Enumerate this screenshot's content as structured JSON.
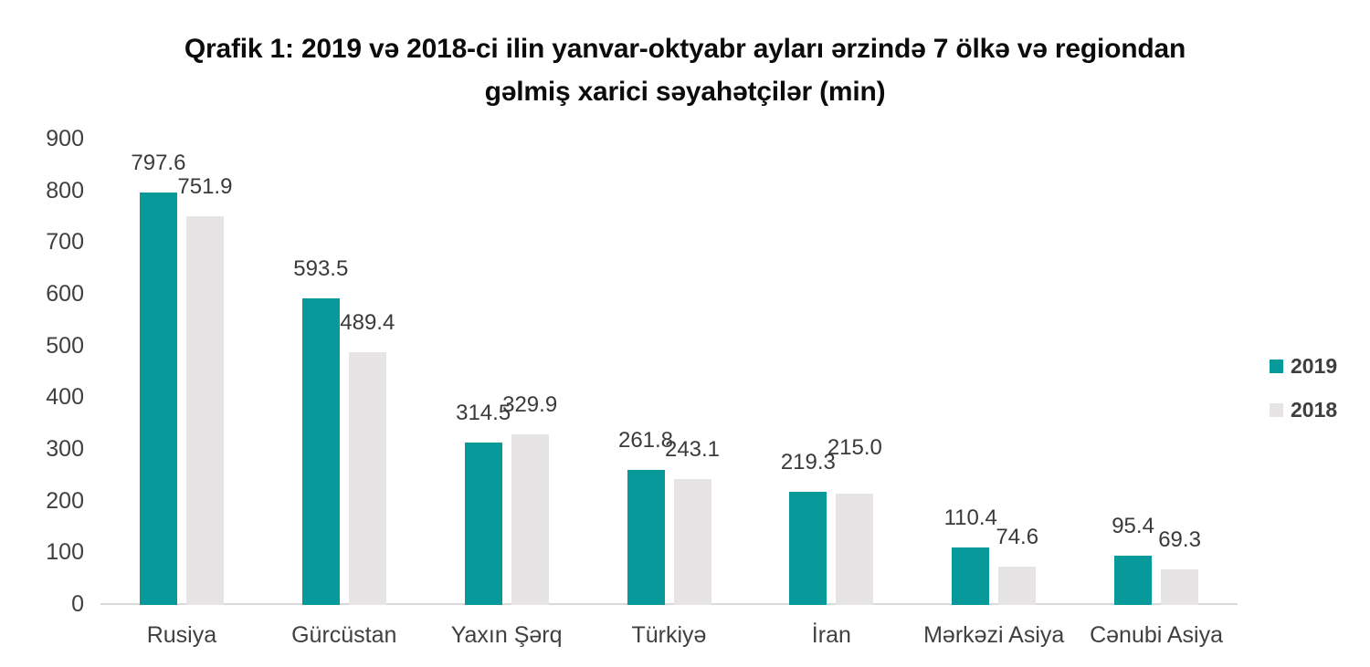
{
  "chart_data": {
    "type": "bar",
    "title": "Qrafik 1: 2019 və 2018-ci ilin yanvar-oktyabr ayları ərzində 7 ölkə və regiondan gəlmiş xarici səyahətçilər (min)",
    "title_lines": [
      "Qrafik 1: 2019 və 2018-ci ilin yanvar-oktyabr ayları ərzində 7 ölkə və regiondan",
      "gəlmiş xarici səyahətçilər (min)"
    ],
    "categories": [
      "Rusiya",
      "Gürcüstan",
      "Yaxın Şərq",
      "Türkiyə",
      "İran",
      "Mərkəzi Asiya",
      "Cənubi Asiya"
    ],
    "series": [
      {
        "name": "2019",
        "color": "#089a9b",
        "values": [
          797.6,
          593.5,
          314.5,
          261.8,
          219.3,
          110.4,
          95.4
        ]
      },
      {
        "name": "2018",
        "color": "#e6e4e5",
        "values": [
          751.9,
          489.4,
          329.9,
          243.1,
          215.0,
          74.6,
          69.3
        ]
      }
    ],
    "ylim": [
      0,
      900
    ],
    "ytick_step": 100,
    "ytick_labels": [
      "0",
      "100",
      "200",
      "300",
      "400",
      "500",
      "600",
      "700",
      "800",
      "900"
    ],
    "value_labels": true,
    "value_label_decimals": 1,
    "grid": false,
    "legend_position": "right",
    "axis_line_color": "#d9d9d9",
    "xlabel": "",
    "ylabel": ""
  }
}
